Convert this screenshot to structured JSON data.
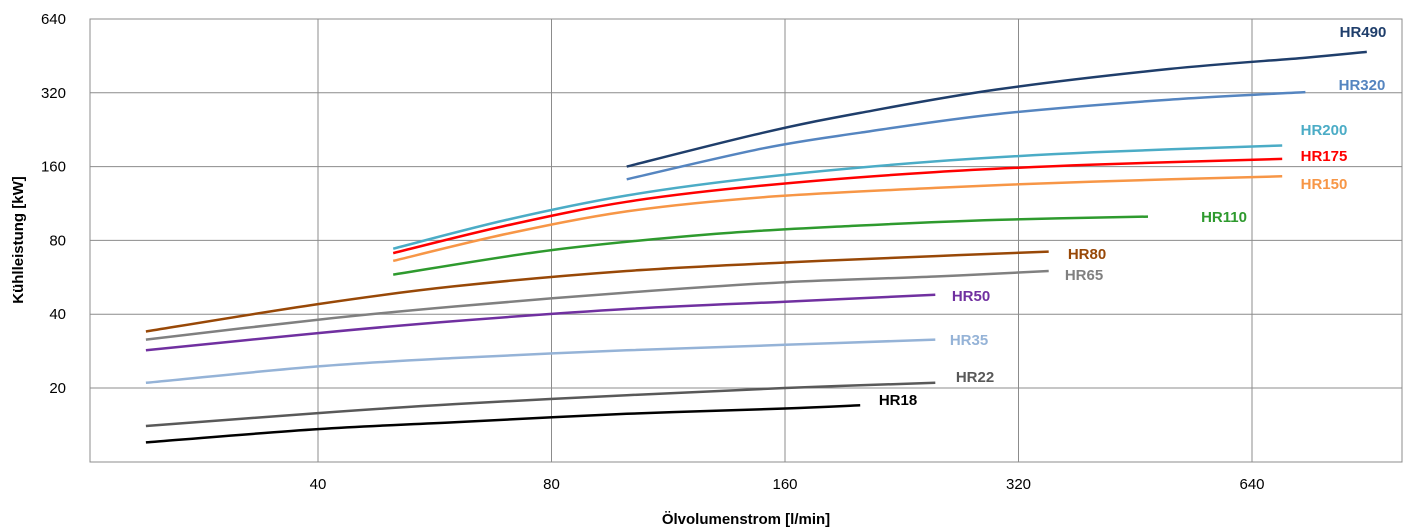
{
  "chart_data": {
    "type": "line",
    "xlabel": "Ölvolumenstrom [l/min]",
    "ylabel": "Kühlleistung [kW]",
    "xscale": "log2",
    "yscale": "log2",
    "xlim": [
      20,
      1000
    ],
    "ylim": [
      10,
      640
    ],
    "xticks": [
      40,
      80,
      160,
      320,
      640
    ],
    "xtick_labels": [
      "40",
      "80",
      "160",
      "320",
      "640"
    ],
    "yticks": [
      20,
      40,
      80,
      160,
      320,
      640
    ],
    "ytick_labels": [
      "20",
      "40",
      "80",
      "160",
      "320",
      "640"
    ],
    "grid": true,
    "legend": "inline labels at line ends",
    "series": [
      {
        "name": "HR490",
        "color": "#1f3e6b",
        "x": [
          100,
          150,
          200,
          300,
          500,
          750,
          900
        ],
        "y": [
          160,
          220,
          265,
          330,
          400,
          445,
          470
        ]
      },
      {
        "name": "HR320",
        "color": "#5585c0",
        "x": [
          100,
          150,
          200,
          300,
          500,
          750
        ],
        "y": [
          142,
          190,
          220,
          262,
          300,
          322
        ]
      },
      {
        "name": "HR200",
        "color": "#4bacc6",
        "x": [
          50,
          70,
          100,
          150,
          250,
          400,
          700
        ],
        "y": [
          74,
          97,
          122,
          145,
          168,
          183,
          195
        ]
      },
      {
        "name": "HR175",
        "color": "#ff0000",
        "x": [
          50,
          70,
          100,
          150,
          250,
          400,
          700
        ],
        "y": [
          71,
          92,
          115,
          134,
          152,
          163,
          172
        ]
      },
      {
        "name": "HR150",
        "color": "#f79646",
        "x": [
          50,
          70,
          100,
          150,
          250,
          400,
          700
        ],
        "y": [
          66,
          85,
          105,
          120,
          131,
          139,
          146
        ]
      },
      {
        "name": "HR110",
        "color": "#2e9a2e",
        "x": [
          50,
          80,
          130,
          200,
          300,
          470
        ],
        "y": [
          58,
          73,
          85,
          92,
          97,
          100
        ]
      },
      {
        "name": "HR80",
        "color": "#984807",
        "x": [
          24,
          40,
          60,
          100,
          160,
          250,
          350
        ],
        "y": [
          34,
          44,
          52,
          60,
          65,
          69,
          72
        ]
      },
      {
        "name": "HR65",
        "color": "#808080",
        "x": [
          24,
          40,
          60,
          100,
          160,
          250,
          350
        ],
        "y": [
          31.5,
          38,
          43,
          49,
          54,
          57,
          60
        ]
      },
      {
        "name": "HR50",
        "color": "#7030a0",
        "x": [
          24,
          40,
          60,
          100,
          160,
          250
        ],
        "y": [
          28.5,
          33.5,
          37.5,
          42,
          45,
          48
        ]
      },
      {
        "name": "HR35",
        "color": "#95b3d7",
        "x": [
          24,
          40,
          60,
          100,
          160,
          250
        ],
        "y": [
          21,
          24.5,
          26.5,
          28.5,
          30,
          31.5
        ]
      },
      {
        "name": "HR22",
        "color": "#595959",
        "x": [
          24,
          40,
          60,
          100,
          160,
          250
        ],
        "y": [
          14,
          15.8,
          17.2,
          18.7,
          20,
          21
        ]
      },
      {
        "name": "HR18",
        "color": "#000000",
        "x": [
          24,
          40,
          60,
          100,
          160,
          200
        ],
        "y": [
          12,
          13.6,
          14.5,
          15.7,
          16.5,
          17
        ]
      }
    ]
  }
}
